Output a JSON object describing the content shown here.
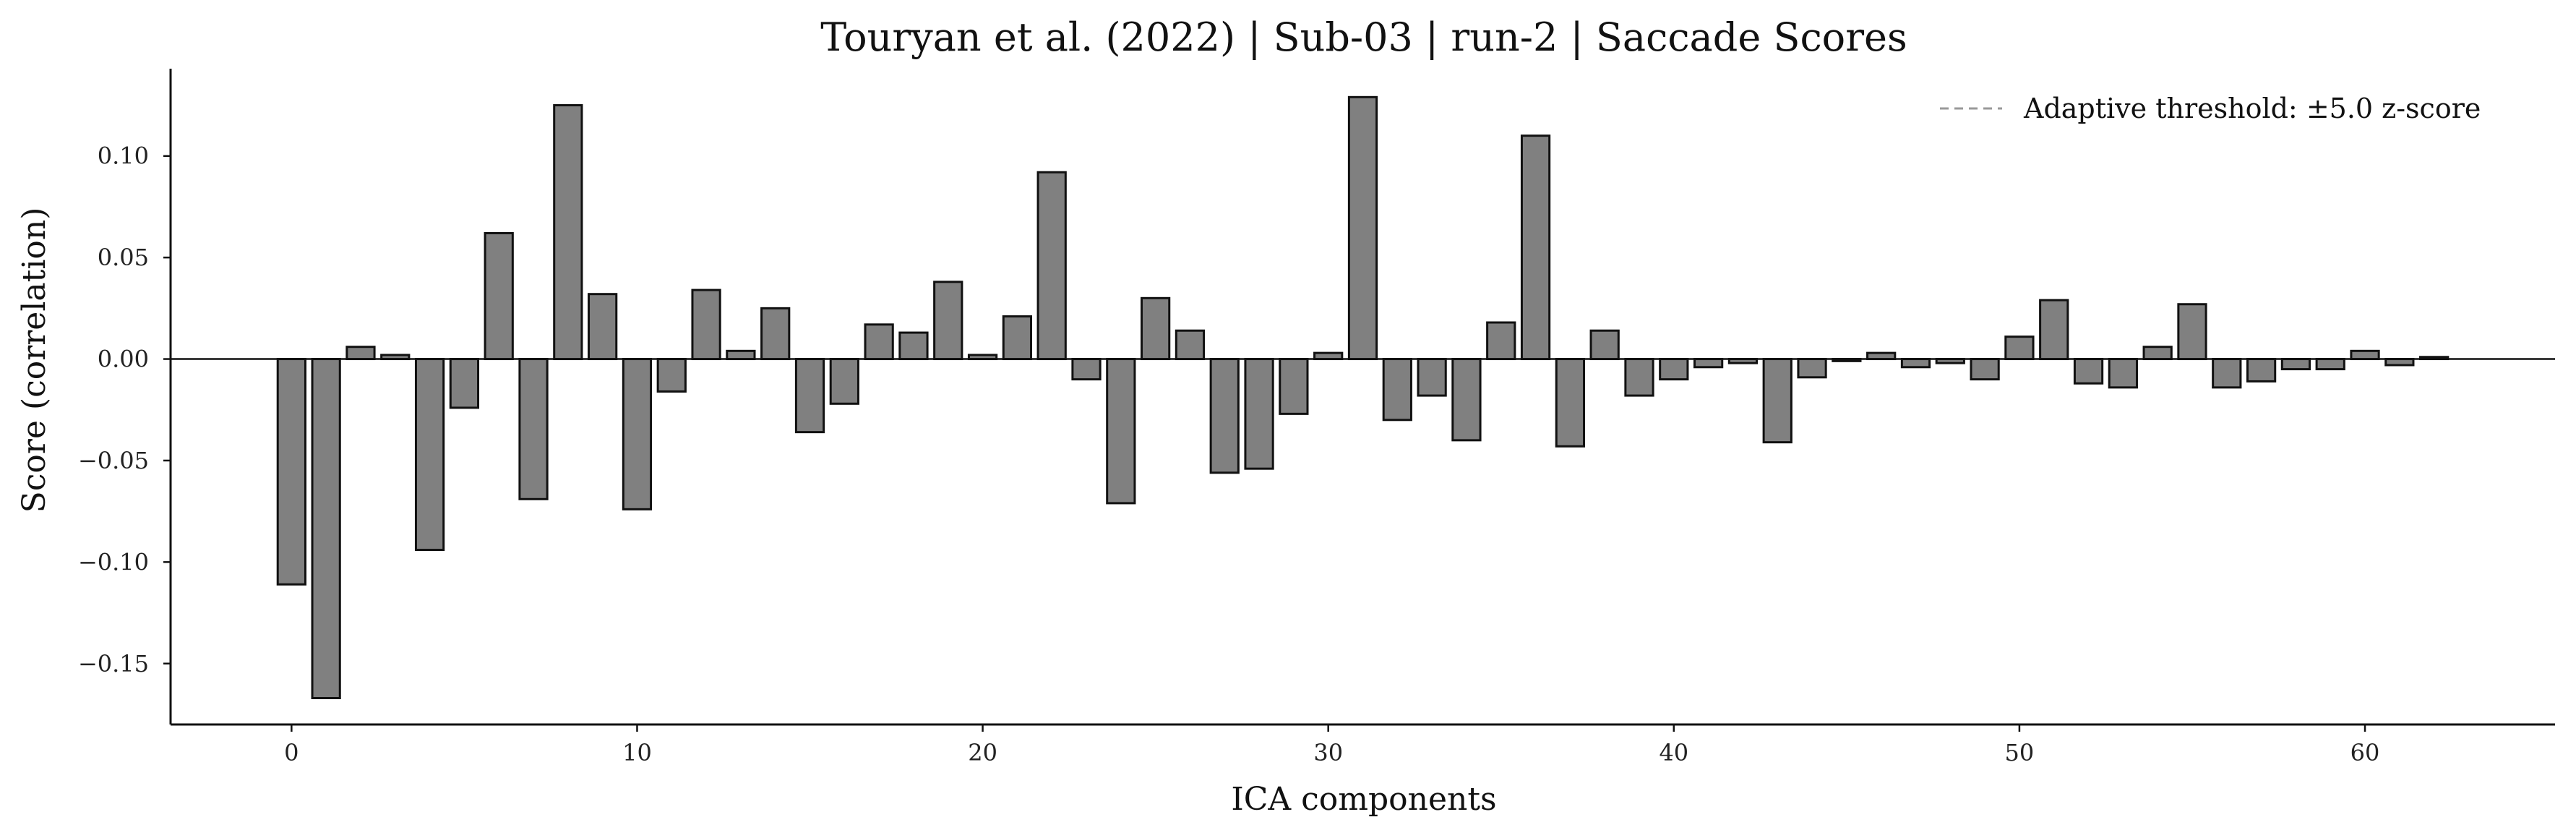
{
  "chart_data": {
    "type": "bar",
    "title": "Touryan et al. (2022) | Sub-03 | run-2 | Saccade Scores",
    "xlabel": "ICA components",
    "ylabel": "Score (correlation)",
    "xlim": [
      -3.5,
      65.5
    ],
    "ylim": [
      -0.18,
      0.143
    ],
    "x_ticks": [
      0,
      10,
      20,
      30,
      40,
      50,
      60
    ],
    "y_ticks": [
      -0.15,
      -0.1,
      -0.05,
      0.0,
      0.05,
      0.1
    ],
    "y_tick_labels": [
      "−0.15",
      "−0.10",
      "−0.05",
      "0.00",
      "0.05",
      "0.10"
    ],
    "legend": {
      "position": "top-right",
      "entries": [
        {
          "label": "Adaptive threshold: ±5.0 z-score",
          "style": "dashed",
          "color": "#999999"
        }
      ]
    },
    "grid": false,
    "colors": {
      "bar_fill": "#808080",
      "bar_edge": "#111111",
      "zero_line": "#111111",
      "axis": "#111111"
    },
    "x": [
      0,
      1,
      2,
      3,
      4,
      5,
      6,
      7,
      8,
      9,
      10,
      11,
      12,
      13,
      14,
      15,
      16,
      17,
      18,
      19,
      20,
      21,
      22,
      23,
      24,
      25,
      26,
      27,
      28,
      29,
      30,
      31,
      32,
      33,
      34,
      35,
      36,
      37,
      38,
      39,
      40,
      41,
      42,
      43,
      44,
      45,
      46,
      47,
      48,
      49,
      50,
      51,
      52,
      53,
      54,
      55,
      56,
      57,
      58,
      59,
      60,
      61,
      62
    ],
    "values": [
      -0.111,
      -0.167,
      0.006,
      0.002,
      -0.094,
      -0.024,
      0.062,
      -0.069,
      0.125,
      0.032,
      -0.074,
      -0.016,
      0.034,
      0.004,
      0.025,
      -0.036,
      -0.022,
      0.017,
      0.013,
      0.038,
      0.002,
      0.021,
      0.092,
      -0.01,
      -0.071,
      0.03,
      0.014,
      -0.056,
      -0.054,
      -0.027,
      0.003,
      0.129,
      -0.03,
      -0.018,
      -0.04,
      0.018,
      0.11,
      -0.043,
      0.014,
      -0.018,
      -0.01,
      -0.004,
      -0.002,
      -0.041,
      -0.009,
      -0.001,
      0.003,
      -0.004,
      -0.002,
      -0.01,
      0.011,
      0.029,
      -0.012,
      -0.014,
      0.006,
      0.027,
      -0.014,
      -0.011,
      -0.005,
      -0.005,
      0.004,
      -0.003,
      0.001
    ]
  }
}
